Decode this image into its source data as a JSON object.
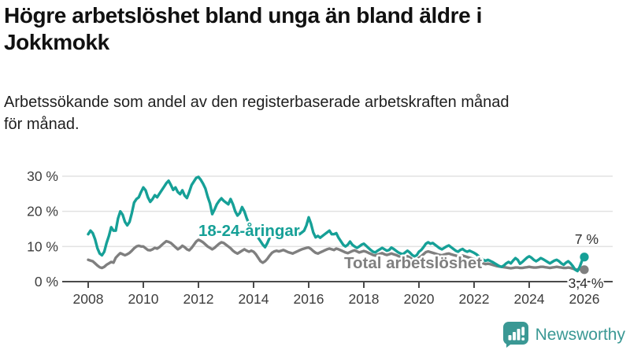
{
  "header": {
    "title_lines": [
      "Högre arbetslöshet bland unga än bland äldre i",
      "Jokkmokk"
    ],
    "subtitle_lines": [
      "Arbetssökande som andel av den registerbaserade arbetskraften månad",
      "för månad."
    ]
  },
  "colors": {
    "youth": "#16a097",
    "total": "#7f7f7f",
    "axis": "#4a4a4a",
    "grid": "#e2e2e2",
    "tick_label": "#3d3d3d",
    "end_label": "#2e2e2e",
    "brand": "#3a9894"
  },
  "chart_data": {
    "type": "line",
    "grid": "horizontal",
    "legend_position": "inline-labels",
    "x_unit": "month",
    "x_start": "2008-01",
    "x_end": "2026-01",
    "ylim": [
      0,
      30
    ],
    "x_tick_labels": [
      "2008",
      "2010",
      "2012",
      "2014",
      "2016",
      "2018",
      "2020",
      "2022",
      "2024",
      "2026"
    ],
    "x_tick_years": [
      2008,
      2010,
      2012,
      2014,
      2016,
      2018,
      2020,
      2022,
      2024,
      2026
    ],
    "y_ticks": [
      {
        "value": 0,
        "label": "0 %"
      },
      {
        "value": 10,
        "label": "10 %"
      },
      {
        "value": 20,
        "label": "20 %"
      },
      {
        "value": 30,
        "label": "30 %"
      }
    ],
    "series": [
      {
        "name": "Total arbetslöshet",
        "color": "#7f7f7f",
        "end_label": "3,4 %",
        "end_value": 3.4,
        "values": [
          6.2,
          6.0,
          5.8,
          5.2,
          4.6,
          4.1,
          3.9,
          4.2,
          4.8,
          5.2,
          5.6,
          5.4,
          6.8,
          7.5,
          8.1,
          7.8,
          7.5,
          7.8,
          8.2,
          8.8,
          9.5,
          10.0,
          10.2,
          10.0,
          10.0,
          9.5,
          9.0,
          8.9,
          9.2,
          9.6,
          9.4,
          9.8,
          10.4,
          11.0,
          11.5,
          11.3,
          11.0,
          10.4,
          9.8,
          9.2,
          9.6,
          10.2,
          9.8,
          9.2,
          8.9,
          9.6,
          10.5,
          11.4,
          11.9,
          11.6,
          11.2,
          10.6,
          10.0,
          9.6,
          9.2,
          9.6,
          10.2,
          10.8,
          11.2,
          11.0,
          10.5,
          10.0,
          9.5,
          8.8,
          8.3,
          8.0,
          8.4,
          8.8,
          9.2,
          8.8,
          8.5,
          8.8,
          8.5,
          7.8,
          6.8,
          5.8,
          5.4,
          5.8,
          6.5,
          7.4,
          8.2,
          8.6,
          8.8,
          8.6,
          8.8,
          9.0,
          8.7,
          8.4,
          8.2,
          8.0,
          8.3,
          8.6,
          8.9,
          9.2,
          9.4,
          9.6,
          9.7,
          9.3,
          8.7,
          8.2,
          8.0,
          8.3,
          8.6,
          8.9,
          9.2,
          9.4,
          9.2,
          9.0,
          9.4,
          9.2,
          8.9,
          8.6,
          8.3,
          8.1,
          8.4,
          8.7,
          8.9,
          8.6,
          8.3,
          8.5,
          8.7,
          8.5,
          8.2,
          7.9,
          7.6,
          7.4,
          7.7,
          7.9,
          8.1,
          7.8,
          7.6,
          7.8,
          8.0,
          7.8,
          7.6,
          7.3,
          7.0,
          6.8,
          7.0,
          7.2,
          6.9,
          6.4,
          6.0,
          6.2,
          6.8,
          7.2,
          7.8,
          8.4,
          8.6,
          8.4,
          8.2,
          8.0,
          7.8,
          7.6,
          7.5,
          7.7,
          7.9,
          8.0,
          7.8,
          7.6,
          7.4,
          7.2,
          7.3,
          7.4,
          7.2,
          7.0,
          6.8,
          6.6,
          6.4,
          6.1,
          5.8,
          5.5,
          5.2,
          5.0,
          5.1,
          5.0,
          4.8,
          4.6,
          4.4,
          4.3,
          4.2,
          4.1,
          4.0,
          3.9,
          3.8,
          3.9,
          4.0,
          4.0,
          3.9,
          3.9,
          4.0,
          4.1,
          4.2,
          4.1,
          4.0,
          4.0,
          4.1,
          4.2,
          4.2,
          4.1,
          4.0,
          3.9,
          4.0,
          4.1,
          4.2,
          4.1,
          4.0,
          3.9,
          3.9,
          4.0,
          3.9,
          3.7,
          3.5,
          3.4,
          3.5,
          3.5,
          3.4
        ]
      },
      {
        "name": "18-24-åringar",
        "color": "#16a097",
        "end_label": "7 %",
        "end_value": 7,
        "values": [
          13.5,
          14.5,
          13.8,
          12.0,
          9.5,
          8.0,
          7.5,
          8.5,
          11.0,
          13.0,
          15.5,
          14.5,
          14.5,
          18.0,
          20.0,
          19.0,
          17.0,
          16.0,
          17.0,
          19.5,
          22.5,
          23.5,
          24.0,
          25.5,
          26.8,
          26.0,
          24.0,
          22.7,
          23.5,
          24.6,
          24.0,
          25.0,
          26.0,
          27.0,
          28.0,
          28.7,
          27.5,
          26.1,
          26.8,
          25.5,
          24.9,
          26.0,
          24.5,
          23.8,
          25.5,
          27.5,
          28.5,
          29.5,
          29.8,
          29.0,
          27.9,
          26.5,
          24.2,
          22.3,
          19.2,
          20.5,
          22.0,
          23.0,
          23.7,
          23.0,
          22.5,
          22.0,
          23.5,
          22.0,
          20.0,
          18.8,
          19.5,
          21.2,
          20.0,
          18.0,
          16.5,
          15.5,
          15.0,
          14.0,
          12.5,
          11.5,
          10.5,
          9.8,
          11.0,
          12.5,
          13.5,
          14.0,
          14.5,
          14.0,
          14.5,
          15.0,
          14.0,
          13.5,
          13.0,
          12.8,
          13.5,
          14.0,
          13.5,
          14.0,
          14.5,
          16.0,
          18.3,
          16.5,
          14.0,
          12.6,
          13.0,
          12.5,
          13.0,
          13.5,
          14.0,
          14.5,
          13.5,
          13.5,
          13.8,
          12.5,
          11.5,
          10.5,
          10.0,
          10.5,
          11.4,
          10.5,
          10.0,
          9.6,
          10.0,
          10.5,
          10.8,
          10.2,
          9.6,
          9.0,
          8.5,
          8.3,
          8.8,
          9.2,
          9.6,
          9.2,
          8.8,
          9.0,
          9.7,
          9.3,
          8.8,
          8.3,
          8.0,
          7.8,
          8.3,
          8.8,
          8.3,
          7.6,
          7.2,
          7.5,
          8.5,
          9.0,
          9.8,
          10.8,
          11.2,
          10.8,
          11.0,
          10.5,
          10.0,
          9.5,
          9.2,
          9.6,
          10.0,
          10.3,
          9.8,
          9.3,
          8.8,
          8.5,
          9.0,
          9.3,
          8.8,
          8.5,
          8.8,
          8.5,
          8.2,
          7.8,
          7.2,
          6.6,
          6.2,
          5.9,
          6.2,
          5.9,
          5.6,
          5.2,
          4.8,
          4.4,
          4.2,
          4.6,
          5.2,
          5.6,
          5.2,
          6.0,
          6.7,
          6.2,
          5.1,
          5.6,
          6.2,
          6.8,
          7.2,
          6.8,
          6.2,
          5.8,
          6.2,
          6.7,
          6.4,
          6.0,
          5.6,
          5.2,
          5.6,
          6.0,
          6.2,
          5.8,
          5.2,
          4.8,
          5.4,
          5.8,
          5.2,
          4.4,
          3.4,
          3.0,
          4.2,
          6.0,
          7.0
        ]
      }
    ]
  },
  "footer": {
    "brand": "Newsworthy",
    "logo_icon": "bar-chart-speech-bubble-icon"
  }
}
